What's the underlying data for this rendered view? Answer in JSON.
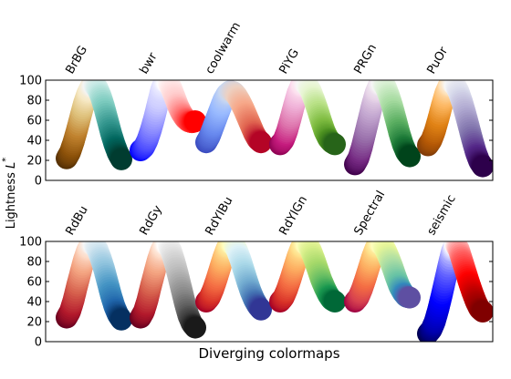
{
  "chart_data": {
    "type": "scatter",
    "xlabel": "Diverging colormaps",
    "ylabel": "Lightness $L^*$",
    "ylabel_display": {
      "main": "Lightness ",
      "symbol": "L",
      "superscript": "*"
    },
    "ylim": [
      0,
      100
    ],
    "yticks": [
      0,
      20,
      40,
      60,
      80,
      100
    ],
    "ytick_labels": [
      "0",
      "20",
      "40",
      "60",
      "80",
      "100"
    ],
    "panels": [
      {
        "colormaps": [
          {
            "name": "BrBG",
            "lightness": [
              22,
              28,
              38,
              50,
              63,
              76,
              86,
              93,
              95,
              92,
              84,
              73,
              60,
              47,
              36,
              27,
              21
            ],
            "colors": [
              "#543005",
              "#8c510a",
              "#bf812d",
              "#dfc27d",
              "#f6e8c3",
              "#f5f5f5",
              "#c7eae5",
              "#80cdc1",
              "#35978f",
              "#01665e",
              "#003c30"
            ]
          },
          {
            "name": "bwr",
            "lightness": [
              30,
              33,
              40,
              50,
              62,
              76,
              90,
              98,
              98,
              92,
              83,
              74,
              67,
              62,
              59,
              58,
              59
            ],
            "colors": [
              "#0000ff",
              "#6666ff",
              "#ccccff",
              "#ffffff",
              "#ffcccc",
              "#ff6666",
              "#ff0000"
            ]
          },
          {
            "name": "coolwarm",
            "lightness": [
              38,
              44,
              53,
              62,
              71,
              80,
              86,
              89,
              88,
              84,
              78,
              71,
              63,
              55,
              47,
              41,
              38
            ],
            "colors": [
              "#3b4cc0",
              "#6788ee",
              "#9abbff",
              "#c9d7f0",
              "#edd1c2",
              "#f7a889",
              "#e26952",
              "#b40426"
            ]
          },
          {
            "name": "PiYG",
            "lightness": [
              36,
              40,
              49,
              61,
              74,
              86,
              94,
              97,
              95,
              89,
              80,
              70,
              59,
              49,
              42,
              38,
              36
            ],
            "colors": [
              "#8e0152",
              "#c51b7d",
              "#de77ae",
              "#f1b6da",
              "#fde0ef",
              "#f7f7f7",
              "#e6f5d0",
              "#b8e186",
              "#7fbc41",
              "#4d9221",
              "#276419"
            ]
          },
          {
            "name": "PRGn",
            "lightness": [
              16,
              22,
              33,
              47,
              61,
              75,
              87,
              95,
              97,
              93,
              84,
              73,
              60,
              47,
              36,
              28,
              24
            ],
            "colors": [
              "#40004b",
              "#762a83",
              "#9970ab",
              "#c2a5cf",
              "#e7d4e8",
              "#f7f7f7",
              "#d9f0d3",
              "#a6dba0",
              "#5aae61",
              "#1b7837",
              "#00441b"
            ]
          },
          {
            "name": "PuOr",
            "lightness": [
              35,
              40,
              49,
              61,
              74,
              86,
              94,
              97,
              95,
              88,
              78,
              66,
              53,
              40,
              28,
              19,
              14
            ],
            "colors": [
              "#7f3b08",
              "#b35806",
              "#e08214",
              "#fdb863",
              "#fee0b6",
              "#f7f7f7",
              "#d8daeb",
              "#b2abd2",
              "#8073ac",
              "#542788",
              "#2d004b"
            ]
          }
        ]
      },
      {
        "colormaps": [
          {
            "name": "RdBu",
            "lightness": [
              24,
              30,
              41,
              55,
              68,
              81,
              91,
              97,
              97,
              92,
              83,
              72,
              59,
              46,
              35,
              27,
              22
            ],
            "colors": [
              "#67001f",
              "#b2182b",
              "#d6604d",
              "#f4a582",
              "#fddbc7",
              "#f7f7f7",
              "#d1e5f0",
              "#92c5de",
              "#4393c3",
              "#2166ac",
              "#053061"
            ]
          },
          {
            "name": "RdGy",
            "lightness": [
              24,
              30,
              41,
              55,
              68,
              81,
              91,
              97,
              97,
              90,
              79,
              66,
              52,
              38,
              26,
              18,
              14
            ],
            "colors": [
              "#67001f",
              "#b2182b",
              "#d6604d",
              "#f4a582",
              "#fddbc7",
              "#ffffff",
              "#e0e0e0",
              "#bababa",
              "#878787",
              "#4d4d4d",
              "#1a1a1a"
            ]
          },
          {
            "name": "RdYlBu",
            "lightness": [
              40,
              44,
              52,
              62,
              73,
              84,
              93,
              98,
              97,
              91,
              82,
              71,
              60,
              50,
              42,
              36,
              32
            ],
            "colors": [
              "#a50026",
              "#d73027",
              "#f46d43",
              "#fdae61",
              "#fee090",
              "#ffffbf",
              "#e0f3f8",
              "#abd9e9",
              "#74add1",
              "#4575b4",
              "#313695"
            ]
          },
          {
            "name": "RdYlGn",
            "lightness": [
              40,
              44,
              52,
              62,
              73,
              84,
              93,
              98,
              97,
              91,
              82,
              72,
              62,
              54,
              47,
              42,
              40
            ],
            "colors": [
              "#a50026",
              "#d73027",
              "#f46d43",
              "#fdae61",
              "#fee08b",
              "#ffffbf",
              "#d9ef8b",
              "#a6d96a",
              "#66bd63",
              "#1a9850",
              "#006837"
            ]
          },
          {
            "name": "Spectral",
            "lightness": [
              40,
              44,
              52,
              62,
              73,
              84,
              93,
              98,
              97,
              91,
              83,
              74,
              64,
              55,
              49,
              45,
              44
            ],
            "colors": [
              "#9e0142",
              "#d53e4f",
              "#f46d43",
              "#fdae61",
              "#fee08b",
              "#ffffbf",
              "#e6f598",
              "#abdda4",
              "#66c2a5",
              "#3288bd",
              "#5e4fa2"
            ]
          },
          {
            "name": "seismic",
            "lightness": [
              8,
              12,
              20,
              32,
              46,
              61,
              76,
              90,
              97,
              92,
              81,
              70,
              59,
              49,
              40,
              33,
              30
            ],
            "colors": [
              "#00004c",
              "#0000b2",
              "#0000ff",
              "#6666ff",
              "#ffffff",
              "#ff6666",
              "#ff0000",
              "#b20000",
              "#800000"
            ]
          }
        ]
      }
    ]
  }
}
